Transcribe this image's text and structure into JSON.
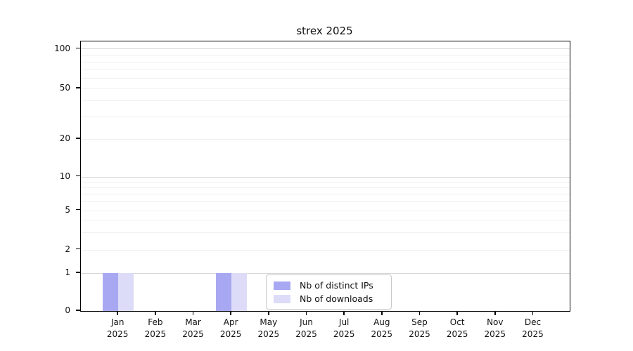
{
  "chart_data": {
    "type": "bar",
    "title": "strex 2025",
    "categories": [
      "Jan",
      "Feb",
      "Mar",
      "Apr",
      "May",
      "Jun",
      "Jul",
      "Aug",
      "Sep",
      "Oct",
      "Nov",
      "Dec"
    ],
    "x_year_label": "2025",
    "series": [
      {
        "name": "Nb of distinct IPs",
        "color": "#a8a8f2",
        "values": [
          1,
          0,
          0,
          1,
          0,
          0,
          0,
          0,
          0,
          0,
          0,
          0
        ]
      },
      {
        "name": "Nb of downloads",
        "color": "#dcdcf8",
        "values": [
          1,
          0,
          0,
          1,
          0,
          0,
          0,
          0,
          0,
          0,
          0,
          0
        ]
      }
    ],
    "yticks": [
      0,
      1,
      2,
      5,
      10,
      20,
      50,
      100
    ],
    "minor_gridticks": [
      3,
      4,
      6,
      7,
      8,
      9,
      30,
      40,
      60,
      70,
      80,
      90
    ],
    "yscale": "symlog",
    "ylim": [
      0,
      115
    ],
    "xlabel": "",
    "ylabel": "",
    "grid": true,
    "legend_position": "lower center",
    "colors": {
      "major_grid": "#d6d6d6",
      "minor_grid": "#efefef",
      "axis": "#000000",
      "text": "#111111",
      "background": "#ffffff"
    }
  }
}
